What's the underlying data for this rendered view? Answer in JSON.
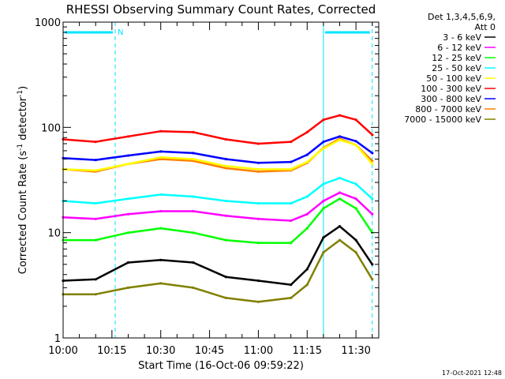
{
  "chart_data": {
    "type": "line",
    "title": "RHESSI Observing Summary Count Rates, Corrected",
    "xlabel": "Start Time (16-Oct-06 09:59:22)",
    "ylabel": "Corrected Count Rate (s⁻¹ detector⁻¹)",
    "ylabel_text": "Corrected Count Rate (s",
    "ylabel_sup1": "-1",
    "ylabel_mid": " detector",
    "ylabel_sup2": "-1",
    "ylabel_end": ")",
    "y_scale": "log",
    "ylim": [
      1,
      1000
    ],
    "xlim": [
      "10:00",
      "11:37"
    ],
    "x_ticks": [
      "10:00",
      "10:15",
      "10:30",
      "10:45",
      "11:00",
      "11:15",
      "11:30"
    ],
    "y_ticks": [
      {
        "value": 1,
        "label": "1"
      },
      {
        "value": 10,
        "label": "10"
      },
      {
        "value": 100,
        "label": "100"
      },
      {
        "value": 1000,
        "label": "1000"
      }
    ],
    "legend_position": "top-right",
    "legend_header": [
      "Det 1,3,4,5,6,9,",
      "Att 0"
    ],
    "night_intervals": [
      {
        "start": "10:00",
        "end": "10:16",
        "label": "N"
      },
      {
        "start": "11:20",
        "end": "11:35",
        "label": ""
      }
    ],
    "series": [
      {
        "name": "3 - 6 keV",
        "color": "#000000",
        "x": [
          "10:00",
          "10:10",
          "10:20",
          "10:30",
          "10:40",
          "10:50",
          "11:00",
          "11:10",
          "11:15",
          "11:20",
          "11:25",
          "11:30",
          "11:35"
        ],
        "values": [
          3.5,
          3.6,
          5.2,
          5.5,
          5.2,
          3.8,
          3.5,
          3.2,
          4.5,
          9.0,
          11.5,
          8.5,
          5.0
        ]
      },
      {
        "name": "6 - 12 keV",
        "color": "#ff00ff",
        "x": [
          "10:00",
          "10:10",
          "10:20",
          "10:30",
          "10:40",
          "10:50",
          "11:00",
          "11:10",
          "11:15",
          "11:20",
          "11:25",
          "11:30",
          "11:35"
        ],
        "values": [
          14,
          13.5,
          15,
          16,
          16,
          14.5,
          13.5,
          13,
          15,
          20,
          24,
          21,
          15
        ]
      },
      {
        "name": "12 - 25 keV",
        "color": "#00ff00",
        "x": [
          "10:00",
          "10:10",
          "10:20",
          "10:30",
          "10:40",
          "10:50",
          "11:00",
          "11:10",
          "11:15",
          "11:20",
          "11:25",
          "11:30",
          "11:35"
        ],
        "values": [
          8.5,
          8.5,
          10,
          11,
          10,
          8.5,
          8.0,
          8.0,
          11,
          17,
          21,
          17,
          10
        ]
      },
      {
        "name": "25 - 50 keV",
        "color": "#00ffff",
        "x": [
          "10:00",
          "10:10",
          "10:20",
          "10:30",
          "10:40",
          "10:50",
          "11:00",
          "11:10",
          "11:15",
          "11:20",
          "11:25",
          "11:30",
          "11:35"
        ],
        "values": [
          20,
          19,
          21,
          23,
          22,
          20,
          19,
          19,
          22,
          29,
          33,
          29,
          21
        ]
      },
      {
        "name": "50 - 100 keV",
        "color": "#ffff00",
        "x": [
          "10:00",
          "10:10",
          "10:20",
          "10:30",
          "10:40",
          "10:50",
          "11:00",
          "11:10",
          "11:15",
          "11:20",
          "11:25",
          "11:30",
          "11:35"
        ],
        "values": [
          40,
          39,
          45,
          52,
          50,
          43,
          40,
          40,
          47,
          63,
          76,
          68,
          45
        ]
      },
      {
        "name": "100 - 300 keV",
        "color": "#ff0000",
        "x": [
          "10:00",
          "10:10",
          "10:20",
          "10:30",
          "10:40",
          "10:50",
          "11:00",
          "11:10",
          "11:15",
          "11:20",
          "11:25",
          "11:30",
          "11:35"
        ],
        "values": [
          77,
          73,
          82,
          92,
          90,
          77,
          70,
          73,
          90,
          118,
          130,
          118,
          85
        ]
      },
      {
        "name": "300 - 800 keV",
        "color": "#0000ff",
        "x": [
          "10:00",
          "10:10",
          "10:20",
          "10:30",
          "10:40",
          "10:50",
          "11:00",
          "11:10",
          "11:15",
          "11:20",
          "11:25",
          "11:30",
          "11:35"
        ],
        "values": [
          51,
          49,
          54,
          59,
          57,
          50,
          46,
          47,
          55,
          73,
          82,
          74,
          57
        ]
      },
      {
        "name": "800 - 7000 keV",
        "color": "#ff8000",
        "x": [
          "10:00",
          "10:10",
          "10:20",
          "10:30",
          "10:40",
          "10:50",
          "11:00",
          "11:10",
          "11:15",
          "11:20",
          "11:25",
          "11:30",
          "11:35"
        ],
        "values": [
          40,
          38,
          45,
          50,
          48,
          41,
          38,
          39,
          46,
          64,
          78,
          68,
          48
        ]
      },
      {
        "name": "7000 - 15000 keV",
        "color": "#808000",
        "x": [
          "10:00",
          "10:10",
          "10:20",
          "10:30",
          "10:40",
          "10:50",
          "11:00",
          "11:10",
          "11:15",
          "11:20",
          "11:25",
          "11:30",
          "11:35"
        ],
        "values": [
          2.6,
          2.6,
          3.0,
          3.3,
          3.0,
          2.4,
          2.2,
          2.4,
          3.2,
          6.5,
          8.5,
          6.5,
          3.6
        ]
      }
    ]
  },
  "footer": {
    "timestamp": "17-Oct-2021 12:48"
  },
  "palette": {
    "axis": "#000000",
    "night_marker": "#00e5ff",
    "background": "#ffffff"
  }
}
